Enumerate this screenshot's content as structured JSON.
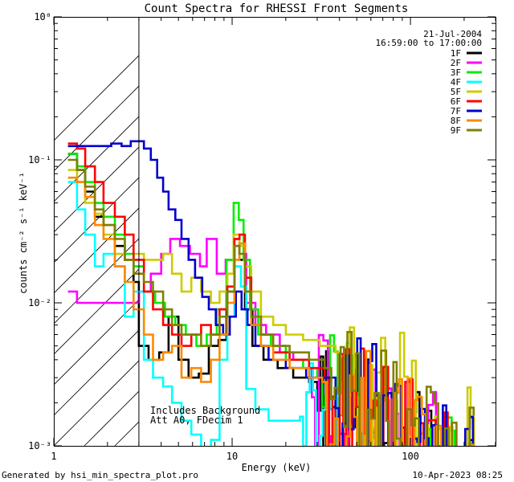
{
  "chart_data": {
    "type": "line",
    "title": "Count Spectra for RHESSI Front Segments",
    "xlabel": "Energy (keV)",
    "ylabel": "counts cm⁻² s⁻¹ keV⁻¹",
    "xscale": "log",
    "yscale": "log",
    "xlim": [
      1,
      300
    ],
    "ylim": [
      0.001,
      1
    ],
    "x_ticks": [
      {
        "value": 1,
        "label": "1"
      },
      {
        "value": 10,
        "label": "10"
      },
      {
        "value": 100,
        "label": "100"
      }
    ],
    "y_ticks": [
      {
        "value": 1,
        "label": "10⁰"
      },
      {
        "value": 0.1,
        "label": "10⁻¹"
      },
      {
        "value": 0.01,
        "label": "10⁻²"
      },
      {
        "value": 0.001,
        "label": "10⁻³"
      }
    ],
    "excluded_region": {
      "from": 1,
      "to": 3,
      "style": "hatched"
    },
    "annotations": {
      "date": "21-Jul-2004",
      "time_range": "16:59:00 to 17:00:00",
      "background_note": "Includes Background",
      "atten_note": "Att A0, FDecim 1"
    },
    "footer": {
      "generated_by": "Generated by hsi_min_spectra_plot.pro",
      "timestamp": "10-Apr-2023 08:25"
    },
    "legend_position": "top-right",
    "series": [
      {
        "name": "1F",
        "color": "#000000",
        "seed": 11,
        "tail_energy": 30,
        "points": [
          [
            1.2,
            0.11
          ],
          [
            1.35,
            0.085
          ],
          [
            1.5,
            0.06
          ],
          [
            1.7,
            0.04
          ],
          [
            1.9,
            0.035
          ],
          [
            2.2,
            0.025
          ],
          [
            2.5,
            0.02
          ],
          [
            2.8,
            0.014
          ],
          [
            3.0,
            0.005
          ],
          [
            3.4,
            0.004
          ],
          [
            3.9,
            0.0045
          ],
          [
            4.4,
            0.008
          ],
          [
            5.0,
            0.004
          ],
          [
            5.7,
            0.003
          ],
          [
            6.5,
            0.0032
          ],
          [
            7.4,
            0.005
          ],
          [
            8.4,
            0.0055
          ],
          [
            9.3,
            0.012
          ],
          [
            10.3,
            0.025
          ],
          [
            11.0,
            0.02
          ],
          [
            11.8,
            0.009
          ],
          [
            13.0,
            0.005
          ],
          [
            15.0,
            0.004
          ],
          [
            18.0,
            0.0035
          ],
          [
            22.0,
            0.003
          ],
          [
            27.0,
            0.0028
          ]
        ]
      },
      {
        "name": "2F",
        "color": "#ff00ff",
        "seed": 22,
        "tail_energy": 28,
        "points": [
          [
            1.2,
            0.012
          ],
          [
            1.35,
            0.01
          ],
          [
            1.7,
            0.01
          ],
          [
            2.2,
            0.01
          ],
          [
            2.6,
            0.01
          ],
          [
            3.0,
            0.012
          ],
          [
            3.5,
            0.016
          ],
          [
            4.0,
            0.022
          ],
          [
            4.5,
            0.028
          ],
          [
            5.1,
            0.025
          ],
          [
            5.8,
            0.022
          ],
          [
            6.6,
            0.018
          ],
          [
            7.2,
            0.028
          ],
          [
            8.2,
            0.016
          ],
          [
            9.2,
            0.02
          ],
          [
            10.2,
            0.028
          ],
          [
            11.0,
            0.022
          ],
          [
            12.0,
            0.01
          ],
          [
            13.5,
            0.007
          ],
          [
            15.5,
            0.006
          ],
          [
            18.5,
            0.0045
          ],
          [
            22.0,
            0.004
          ],
          [
            27.0,
            0.0035
          ]
        ]
      },
      {
        "name": "3F",
        "color": "#00ee00",
        "seed": 33,
        "tail_energy": 32,
        "points": [
          [
            1.2,
            0.11
          ],
          [
            1.35,
            0.09
          ],
          [
            1.5,
            0.07
          ],
          [
            1.7,
            0.05
          ],
          [
            1.9,
            0.04
          ],
          [
            2.2,
            0.03
          ],
          [
            2.5,
            0.022
          ],
          [
            2.8,
            0.018
          ],
          [
            3.2,
            0.012
          ],
          [
            3.7,
            0.01
          ],
          [
            4.2,
            0.008
          ],
          [
            4.8,
            0.007
          ],
          [
            5.5,
            0.006
          ],
          [
            6.3,
            0.005
          ],
          [
            7.2,
            0.006
          ],
          [
            8.2,
            0.009
          ],
          [
            9.3,
            0.02
          ],
          [
            10.2,
            0.05
          ],
          [
            10.9,
            0.038
          ],
          [
            11.6,
            0.02
          ],
          [
            12.6,
            0.009
          ],
          [
            14.0,
            0.006
          ],
          [
            16.5,
            0.005
          ],
          [
            20.0,
            0.004
          ],
          [
            25.0,
            0.0035
          ],
          [
            30.0,
            0.003
          ]
        ]
      },
      {
        "name": "4F",
        "color": "#00ffff",
        "seed": 44,
        "tail_energy": 25,
        "points": [
          [
            1.2,
            0.07
          ],
          [
            1.35,
            0.045
          ],
          [
            1.5,
            0.03
          ],
          [
            1.7,
            0.018
          ],
          [
            1.9,
            0.022
          ],
          [
            2.2,
            0.018
          ],
          [
            2.5,
            0.008
          ],
          [
            2.8,
            0.012
          ],
          [
            3.2,
            0.004
          ],
          [
            3.6,
            0.003
          ],
          [
            4.1,
            0.0026
          ],
          [
            4.6,
            0.002
          ],
          [
            5.2,
            0.0015
          ],
          [
            5.9,
            0.0012
          ],
          [
            6.7,
            0.0009
          ],
          [
            7.6,
            0.0011
          ],
          [
            8.5,
            0.004
          ],
          [
            9.4,
            0.008
          ],
          [
            10.3,
            0.018
          ],
          [
            11.2,
            0.013
          ],
          [
            12.0,
            0.0025
          ],
          [
            13.5,
            0.0018
          ],
          [
            16.0,
            0.0015
          ],
          [
            20.0,
            0.0015
          ],
          [
            24.0,
            0.0016
          ]
        ]
      },
      {
        "name": "5F",
        "color": "#cccc00",
        "seed": 55,
        "tail_energy": 40,
        "points": [
          [
            1.2,
            0.085
          ],
          [
            1.35,
            0.07
          ],
          [
            1.5,
            0.05
          ],
          [
            1.7,
            0.042
          ],
          [
            1.9,
            0.03
          ],
          [
            2.2,
            0.022
          ],
          [
            2.5,
            0.02
          ],
          [
            2.8,
            0.022
          ],
          [
            3.2,
            0.02
          ],
          [
            3.6,
            0.02
          ],
          [
            4.1,
            0.022
          ],
          [
            4.6,
            0.016
          ],
          [
            5.2,
            0.012
          ],
          [
            5.9,
            0.015
          ],
          [
            6.7,
            0.012
          ],
          [
            7.6,
            0.01
          ],
          [
            8.5,
            0.012
          ],
          [
            9.4,
            0.016
          ],
          [
            10.2,
            0.03
          ],
          [
            11.0,
            0.025
          ],
          [
            11.8,
            0.018
          ],
          [
            12.8,
            0.012
          ],
          [
            14.5,
            0.008
          ],
          [
            17.0,
            0.007
          ],
          [
            20.0,
            0.006
          ],
          [
            25.0,
            0.0055
          ],
          [
            31.0,
            0.005
          ],
          [
            38.0,
            0.0045
          ]
        ]
      },
      {
        "name": "6F",
        "color": "#ff0000",
        "seed": 66,
        "tail_energy": 35,
        "points": [
          [
            1.2,
            0.13
          ],
          [
            1.35,
            0.12
          ],
          [
            1.5,
            0.09
          ],
          [
            1.7,
            0.07
          ],
          [
            1.9,
            0.05
          ],
          [
            2.2,
            0.04
          ],
          [
            2.5,
            0.03
          ],
          [
            2.8,
            0.02
          ],
          [
            3.2,
            0.012
          ],
          [
            3.6,
            0.009
          ],
          [
            4.1,
            0.007
          ],
          [
            4.6,
            0.006
          ],
          [
            5.2,
            0.005
          ],
          [
            5.9,
            0.006
          ],
          [
            6.7,
            0.007
          ],
          [
            7.6,
            0.006
          ],
          [
            8.5,
            0.009
          ],
          [
            9.4,
            0.013
          ],
          [
            10.3,
            0.028
          ],
          [
            11.0,
            0.03
          ],
          [
            11.8,
            0.015
          ],
          [
            12.8,
            0.008
          ],
          [
            14.5,
            0.006
          ],
          [
            17.0,
            0.0045
          ],
          [
            21.0,
            0.004
          ],
          [
            27.0,
            0.0035
          ],
          [
            33.0,
            0.003
          ]
        ]
      },
      {
        "name": "7F",
        "color": "#0000cc",
        "seed": 77,
        "tail_energy": 38,
        "points": [
          [
            1.2,
            0.125
          ],
          [
            1.5,
            0.125
          ],
          [
            1.8,
            0.125
          ],
          [
            2.1,
            0.13
          ],
          [
            2.4,
            0.125
          ],
          [
            2.7,
            0.135
          ],
          [
            3.0,
            0.135
          ],
          [
            3.2,
            0.12
          ],
          [
            3.5,
            0.1
          ],
          [
            3.8,
            0.075
          ],
          [
            4.1,
            0.06
          ],
          [
            4.4,
            0.045
          ],
          [
            4.8,
            0.038
          ],
          [
            5.2,
            0.028
          ],
          [
            5.7,
            0.02
          ],
          [
            6.2,
            0.015
          ],
          [
            6.8,
            0.011
          ],
          [
            7.4,
            0.009
          ],
          [
            8.1,
            0.007
          ],
          [
            8.9,
            0.006
          ],
          [
            9.7,
            0.008
          ],
          [
            10.5,
            0.012
          ],
          [
            11.3,
            0.009
          ],
          [
            12.2,
            0.007
          ],
          [
            13.5,
            0.005
          ],
          [
            16.0,
            0.004
          ],
          [
            20.0,
            0.0035
          ],
          [
            26.0,
            0.003
          ],
          [
            33.0,
            0.003
          ]
        ]
      },
      {
        "name": "8F",
        "color": "#ff8800",
        "seed": 88,
        "tail_energy": 34,
        "points": [
          [
            1.2,
            0.075
          ],
          [
            1.35,
            0.07
          ],
          [
            1.5,
            0.055
          ],
          [
            1.7,
            0.035
          ],
          [
            1.9,
            0.028
          ],
          [
            2.2,
            0.018
          ],
          [
            2.5,
            0.014
          ],
          [
            2.8,
            0.009
          ],
          [
            3.2,
            0.006
          ],
          [
            3.6,
            0.004
          ],
          [
            4.1,
            0.0045
          ],
          [
            4.6,
            0.005
          ],
          [
            5.2,
            0.003
          ],
          [
            5.9,
            0.0035
          ],
          [
            6.7,
            0.0028
          ],
          [
            7.6,
            0.004
          ],
          [
            8.5,
            0.006
          ],
          [
            9.4,
            0.01
          ],
          [
            10.3,
            0.02
          ],
          [
            11.0,
            0.026
          ],
          [
            11.8,
            0.012
          ],
          [
            12.8,
            0.007
          ],
          [
            14.5,
            0.005
          ],
          [
            17.0,
            0.004
          ],
          [
            21.0,
            0.0035
          ],
          [
            27.0,
            0.003
          ],
          [
            32.0,
            0.0028
          ]
        ]
      },
      {
        "name": "9F",
        "color": "#808000",
        "seed": 99,
        "tail_energy": 36,
        "points": [
          [
            1.2,
            0.1
          ],
          [
            1.35,
            0.085
          ],
          [
            1.5,
            0.065
          ],
          [
            1.7,
            0.045
          ],
          [
            1.9,
            0.035
          ],
          [
            2.2,
            0.028
          ],
          [
            2.5,
            0.02
          ],
          [
            2.8,
            0.016
          ],
          [
            3.2,
            0.014
          ],
          [
            3.6,
            0.012
          ],
          [
            4.1,
            0.009
          ],
          [
            4.6,
            0.007
          ],
          [
            5.2,
            0.006
          ],
          [
            5.9,
            0.006
          ],
          [
            6.7,
            0.005
          ],
          [
            7.6,
            0.006
          ],
          [
            8.5,
            0.008
          ],
          [
            9.4,
            0.012
          ],
          [
            10.3,
            0.025
          ],
          [
            11.0,
            0.022
          ],
          [
            11.8,
            0.012
          ],
          [
            12.8,
            0.008
          ],
          [
            14.5,
            0.006
          ],
          [
            17.0,
            0.005
          ],
          [
            21.0,
            0.0045
          ],
          [
            27.0,
            0.004
          ],
          [
            33.0,
            0.0035
          ]
        ]
      }
    ]
  }
}
